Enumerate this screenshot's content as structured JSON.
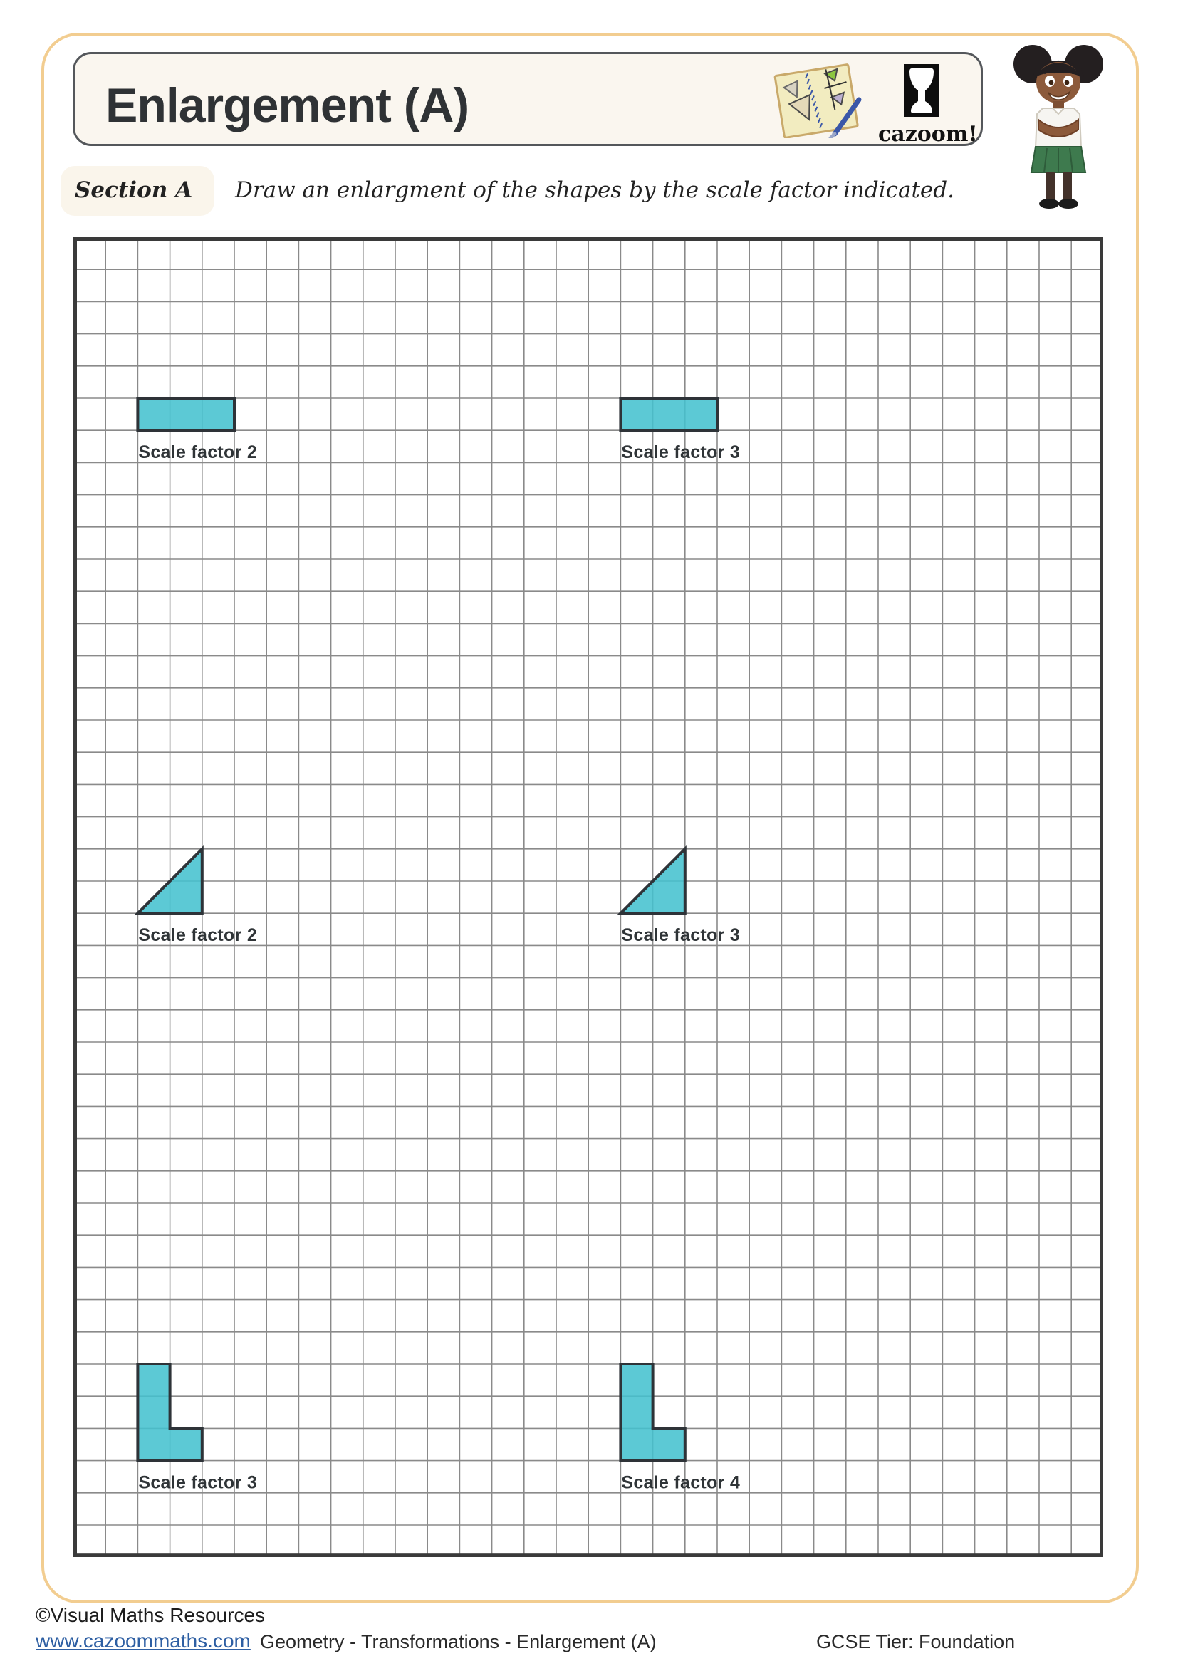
{
  "page": {
    "title": "Enlargement (A)",
    "logo_text": "cazoom!"
  },
  "section": {
    "label": "Section A",
    "instruction": "Draw an enlargment of the shapes by the scale factor indicated."
  },
  "grid": {
    "cols": 32,
    "rows": 41,
    "cell": 45.2,
    "line_color": "#8A8A8A",
    "border_color": "#3A3A3A",
    "shape_fill": "#44C1CF",
    "shape_stroke": "#2E3338"
  },
  "shapes": [
    {
      "id": "rectangle-scale-factor-2",
      "kind": "rect",
      "col": 2,
      "row": 5,
      "w": 3,
      "h": 1,
      "label": "Scale factor 2",
      "label_col": 2,
      "label_row": 6
    },
    {
      "id": "rectangle-scale-factor-3",
      "kind": "rect",
      "col": 17,
      "row": 5,
      "w": 3,
      "h": 1,
      "label": "Scale factor 3",
      "label_col": 17,
      "label_row": 6
    },
    {
      "id": "triangle-scale-factor-2",
      "kind": "polygon",
      "points": [
        [
          2,
          21
        ],
        [
          4,
          21
        ],
        [
          4,
          19
        ]
      ],
      "label": "Scale factor 2",
      "label_col": 2,
      "label_row": 21
    },
    {
      "id": "triangle-scale-factor-3",
      "kind": "polygon",
      "points": [
        [
          17,
          21
        ],
        [
          19,
          21
        ],
        [
          19,
          19
        ]
      ],
      "label": "Scale factor 3",
      "label_col": 17,
      "label_row": 21
    },
    {
      "id": "l-shape-scale-factor-3",
      "kind": "polygon",
      "points": [
        [
          2,
          35
        ],
        [
          3,
          35
        ],
        [
          3,
          37
        ],
        [
          4,
          37
        ],
        [
          4,
          38
        ],
        [
          2,
          38
        ]
      ],
      "label": "Scale factor 3",
      "label_col": 2,
      "label_row": 38
    },
    {
      "id": "l-shape-scale-factor-4",
      "kind": "polygon",
      "points": [
        [
          17,
          35
        ],
        [
          18,
          35
        ],
        [
          18,
          37
        ],
        [
          19,
          37
        ],
        [
          19,
          38
        ],
        [
          17,
          38
        ]
      ],
      "label": "Scale factor 4",
      "label_col": 17,
      "label_row": 38
    }
  ],
  "footer": {
    "copyright": "©Visual Maths Resources",
    "url": "www.cazoommaths.com",
    "center": "Geometry - Transformations - Enlargement (A)",
    "right": "GCSE Tier: Foundation"
  },
  "colors": {
    "page_border": "#F2CD90",
    "header_bg": "#FAF6EF",
    "header_border": "#54575B",
    "section_bg": "#FAF5EB",
    "teal": "#44C1CF",
    "link_blue": "#2E5FA3"
  }
}
